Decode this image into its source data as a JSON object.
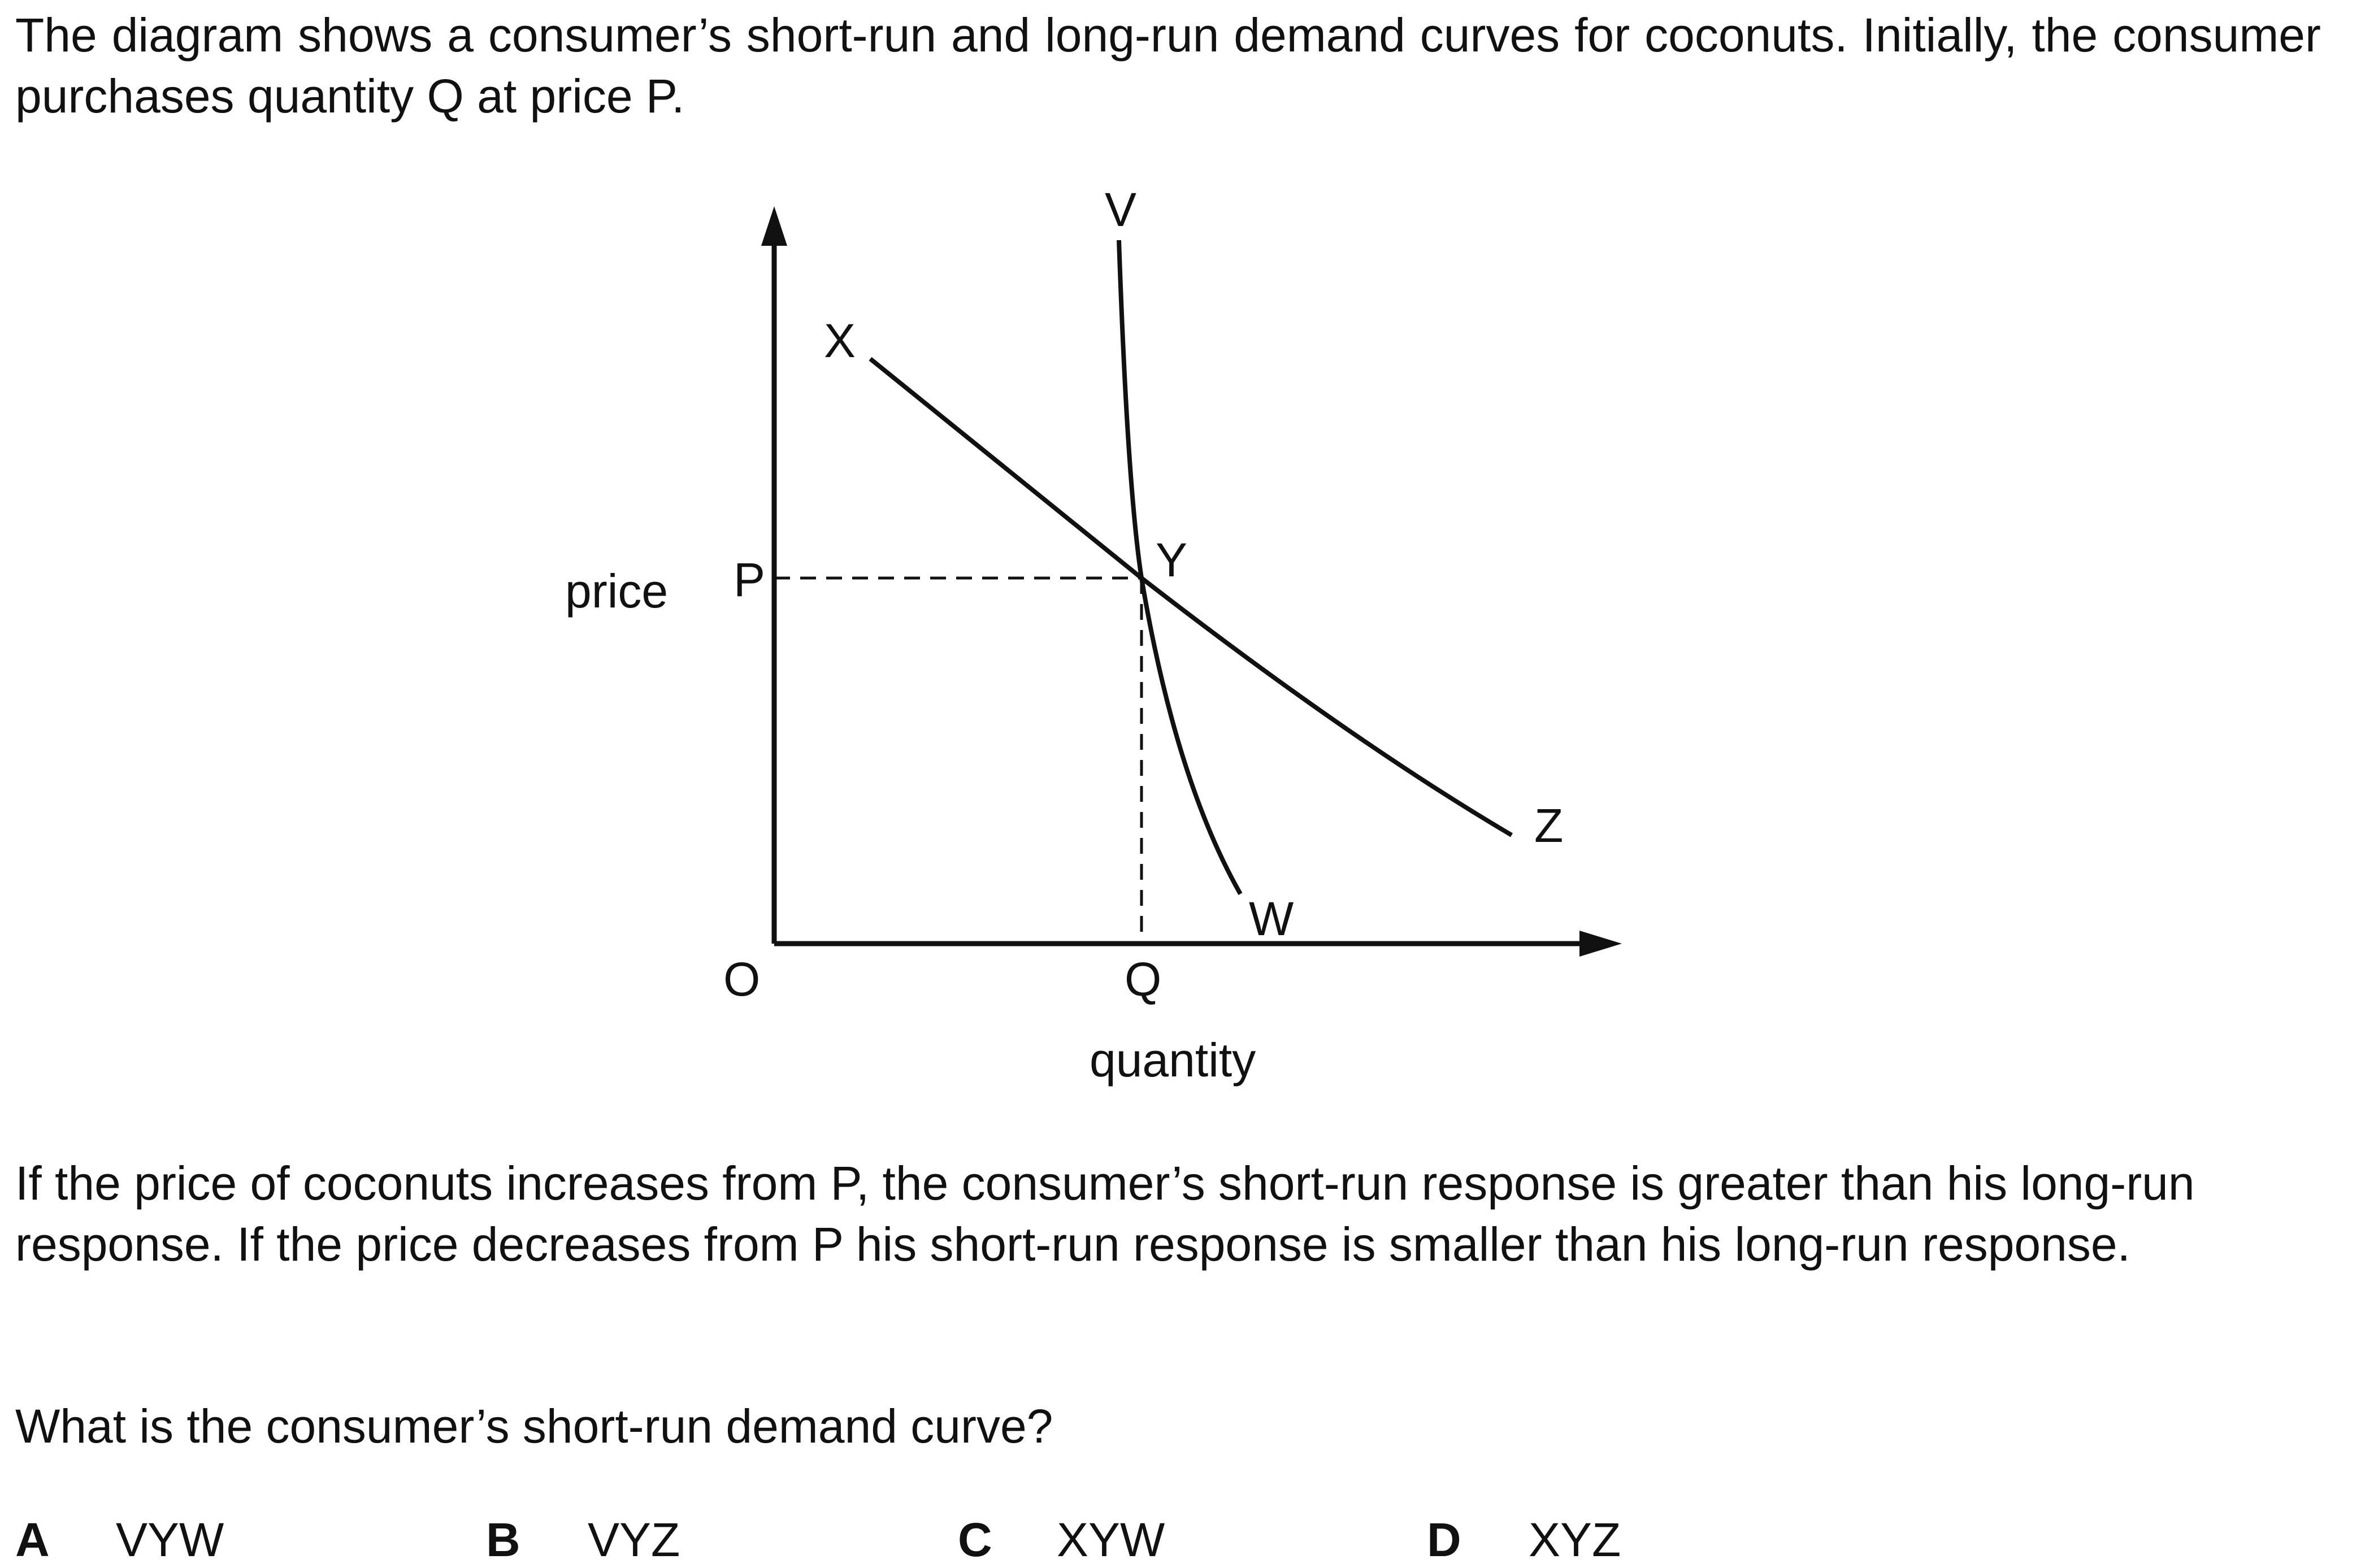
{
  "intro": "The diagram shows a consumer’s short-run and long-run demand curves for coconuts. Initially, the consumer purchases quantity Q at price P.",
  "diagram": {
    "y_axis_label": "price",
    "x_axis_label": "quantity",
    "origin_label": "O",
    "price_label": "P",
    "quantity_label": "Q",
    "curve_points": {
      "v": "V",
      "w": "W",
      "x": "X",
      "y": "Y",
      "z": "Z"
    },
    "curves": [
      {
        "from": "V",
        "through": "Y",
        "to": "W",
        "description": "steep curve"
      },
      {
        "from": "X",
        "through": "Y",
        "to": "Z",
        "description": "flat curve"
      }
    ]
  },
  "followup": "If the price of coconuts increases from P, the consumer’s short-run response is greater than his long-run response. If the price decreases from P his short-run response is smaller than his long-run response.",
  "question": "What is the consumer’s short-run demand curve?",
  "options": [
    {
      "letter": "A",
      "text": "VYW"
    },
    {
      "letter": "B",
      "text": "VYZ"
    },
    {
      "letter": "C",
      "text": "XYW"
    },
    {
      "letter": "D",
      "text": "XYZ"
    }
  ]
}
